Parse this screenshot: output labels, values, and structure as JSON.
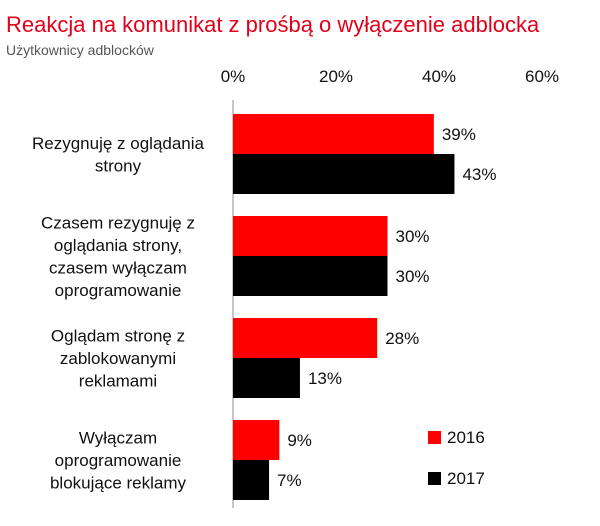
{
  "chart_data": {
    "type": "bar",
    "orientation": "horizontal",
    "title": "Reakcja na komunikat z prośbą o wyłączenie adblocka",
    "subtitle": "Użytkownicy adblocków",
    "xlabel": "",
    "ylabel": "",
    "xlim": [
      0,
      60
    ],
    "ticks": [
      0,
      20,
      40,
      60
    ],
    "tick_labels": [
      "0%",
      "20%",
      "40%",
      "60%"
    ],
    "grid": false,
    "legend_position": "bottom-right",
    "categories": [
      [
        "Rezygnuję z oglądania",
        "strony"
      ],
      [
        "Czasem rezygnuję z",
        "oglądania strony,",
        "czasem wyłączam",
        "oprogramowanie"
      ],
      [
        "Oglądam stronę z",
        "zablokowanymi",
        "reklamami"
      ],
      [
        "Wyłączam",
        "oprogramowanie",
        "blokujące reklamy"
      ]
    ],
    "series": [
      {
        "name": "2016",
        "color": "#fe0000",
        "values": [
          39,
          30,
          28,
          9
        ],
        "labels": [
          "39%",
          "30%",
          "28%",
          "9%"
        ]
      },
      {
        "name": "2017",
        "color": "#000000",
        "values": [
          43,
          30,
          13,
          7
        ],
        "labels": [
          "43%",
          "30%",
          "13%",
          "7%"
        ]
      }
    ]
  }
}
